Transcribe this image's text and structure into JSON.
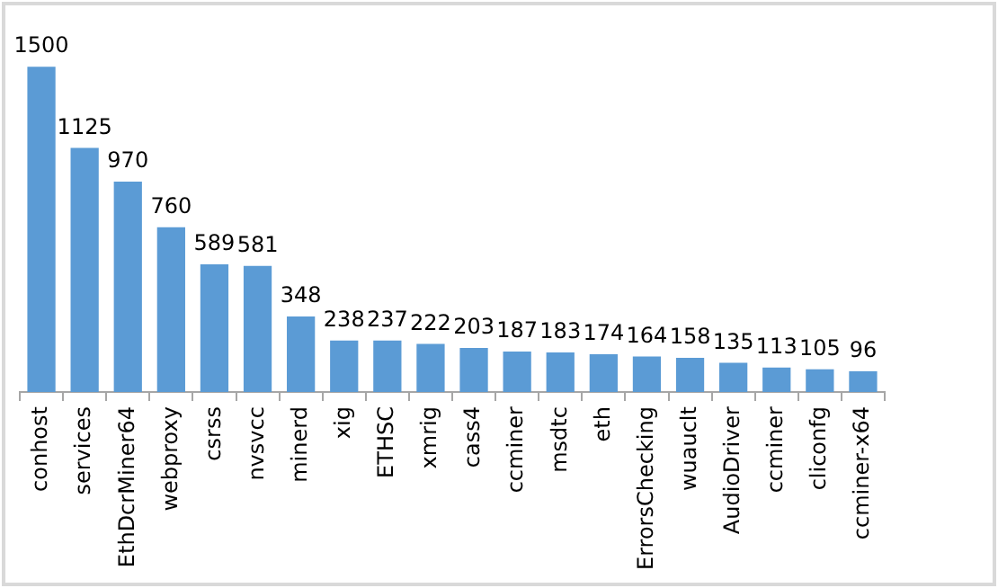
{
  "chart_data": {
    "type": "bar",
    "categories": [
      "conhost",
      "services",
      "EthDcrMiner64",
      "webproxy",
      "csrss",
      "nvsvcc",
      "minerd",
      "xig",
      "ETHSC",
      "xmrig",
      "cass4",
      "ccminer",
      "msdtc",
      "eth",
      "ErrorsChecking",
      "wuauclt",
      "AudioDriver",
      "ccminer",
      "cliconfg",
      "ccminer-x64"
    ],
    "values": [
      1500,
      1125,
      970,
      760,
      589,
      581,
      348,
      238,
      237,
      222,
      203,
      187,
      183,
      174,
      164,
      158,
      135,
      113,
      105,
      96
    ],
    "color": "#5b9bd5",
    "data_labels": true,
    "tick_labels": "x",
    "grid": false,
    "legend": false
  }
}
